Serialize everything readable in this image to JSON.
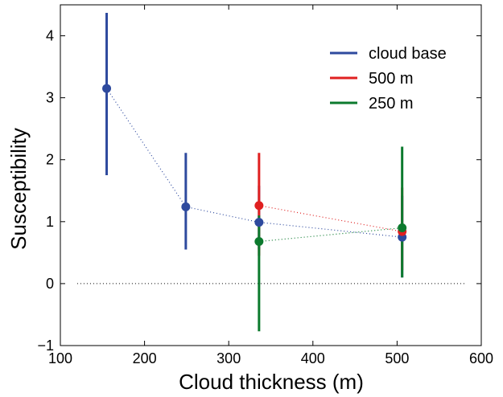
{
  "chart_data": {
    "type": "scatter",
    "title": "",
    "xlabel": "Cloud thickness (m)",
    "ylabel": "Susceptibility",
    "xlim": [
      100,
      600
    ],
    "ylim": [
      -1,
      4.5
    ],
    "xticks": [
      100,
      200,
      300,
      400,
      500,
      600
    ],
    "yticks": [
      -1,
      0,
      1,
      2,
      3,
      4
    ],
    "xtick_labels": [
      "100",
      "200",
      "300",
      "400",
      "500",
      "600"
    ],
    "ytick_labels": [
      "−1",
      "0",
      "1",
      "2",
      "3",
      "4"
    ],
    "grid": false,
    "legend_position": "top-right",
    "reference_line": {
      "y": 0,
      "x_start": 120,
      "x_end": 580,
      "style": "dotted"
    },
    "series": [
      {
        "name": "cloud base",
        "color": "#2e4a9e",
        "points": [
          {
            "x": 155,
            "y": 3.15,
            "low": 1.75,
            "high": 4.37
          },
          {
            "x": 249,
            "y": 1.24,
            "low": 0.55,
            "high": 2.11
          },
          {
            "x": 336,
            "y": 0.99,
            "low": 0.55,
            "high": 1.58
          },
          {
            "x": 506,
            "y": 0.75,
            "low": 0.1,
            "high": 1.42
          }
        ]
      },
      {
        "name": "500 m",
        "color": "#e02020",
        "points": [
          {
            "x": 336,
            "y": 1.26,
            "low": 0.45,
            "high": 2.11
          },
          {
            "x": 506,
            "y": 0.84,
            "low": 0.22,
            "high": 1.55
          }
        ]
      },
      {
        "name": "250 m",
        "color": "#0c7a2e",
        "points": [
          {
            "x": 336,
            "y": 0.68,
            "low": -0.77,
            "high": 1.1
          },
          {
            "x": 506,
            "y": 0.9,
            "low": 0.1,
            "high": 2.21
          }
        ]
      }
    ]
  }
}
